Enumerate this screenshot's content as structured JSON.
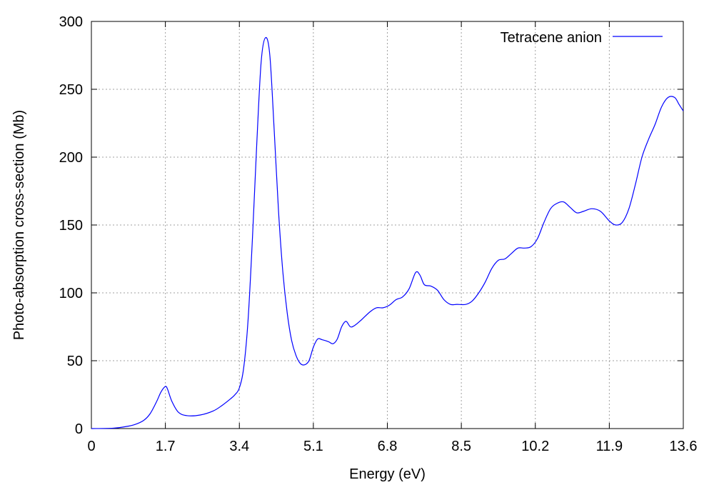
{
  "chart_data": {
    "type": "line",
    "title": "",
    "xlabel": "Energy (eV)",
    "ylabel": "Photo-absorption cross-section (Mb)",
    "xlim": [
      0,
      13.6
    ],
    "ylim": [
      0,
      300
    ],
    "xticks": [
      0,
      1.7,
      3.4,
      5.1,
      6.8,
      8.5,
      10.2,
      11.9,
      13.6
    ],
    "xtick_labels": [
      "0",
      "1.7",
      "3.4",
      "5.1",
      "6.8",
      "8.5",
      "10.2",
      "11.9",
      "13.6"
    ],
    "yticks": [
      0,
      50,
      100,
      150,
      200,
      250,
      300
    ],
    "ytick_labels": [
      "0",
      "50",
      "100",
      "150",
      "200",
      "250",
      "300"
    ],
    "grid": true,
    "legend_position": "top-right",
    "series": [
      {
        "name": "Tetracene anion",
        "color": "#0000ff",
        "x": [
          0,
          0.5,
          0.8,
          1.0,
          1.2,
          1.35,
          1.5,
          1.6,
          1.7,
          1.75,
          1.85,
          2.0,
          2.2,
          2.5,
          2.8,
          3.0,
          3.2,
          3.3,
          3.4,
          3.5,
          3.6,
          3.7,
          3.8,
          3.9,
          4.0,
          4.1,
          4.2,
          4.3,
          4.4,
          4.5,
          4.6,
          4.7,
          4.8,
          4.9,
          5.0,
          5.1,
          5.2,
          5.3,
          5.45,
          5.55,
          5.65,
          5.75,
          5.85,
          5.95,
          6.05,
          6.2,
          6.4,
          6.55,
          6.7,
          6.85,
          7.0,
          7.15,
          7.3,
          7.45,
          7.55,
          7.65,
          7.8,
          7.95,
          8.1,
          8.25,
          8.4,
          8.6,
          8.75,
          8.9,
          9.05,
          9.2,
          9.35,
          9.5,
          9.65,
          9.8,
          9.95,
          10.1,
          10.25,
          10.4,
          10.55,
          10.7,
          10.85,
          11.0,
          11.15,
          11.3,
          11.5,
          11.7,
          11.9,
          12.05,
          12.2,
          12.35,
          12.5,
          12.65,
          12.8,
          12.95,
          13.1,
          13.25,
          13.4,
          13.5,
          13.6
        ],
        "y": [
          0,
          0.3,
          1.5,
          3,
          6,
          11,
          20,
          27,
          31,
          29,
          20,
          12,
          9.5,
          10,
          13,
          17,
          22,
          25,
          30,
          45,
          80,
          140,
          210,
          270,
          288,
          275,
          220,
          160,
          115,
          85,
          65,
          54,
          48,
          47,
          50,
          60,
          66,
          65.5,
          64,
          62.5,
          66,
          75,
          79,
          75,
          76,
          80,
          86,
          89,
          89,
          91,
          95,
          97,
          103,
          115,
          113,
          106,
          105,
          102,
          95,
          91.5,
          91.5,
          91.5,
          94,
          100,
          108,
          118,
          124,
          125,
          129,
          133,
          133,
          134,
          140,
          152,
          162,
          166,
          167,
          163,
          159,
          160,
          162,
          160,
          153,
          150,
          152,
          162,
          180,
          200,
          213,
          224,
          237,
          244,
          244,
          239,
          234
        ]
      }
    ]
  }
}
